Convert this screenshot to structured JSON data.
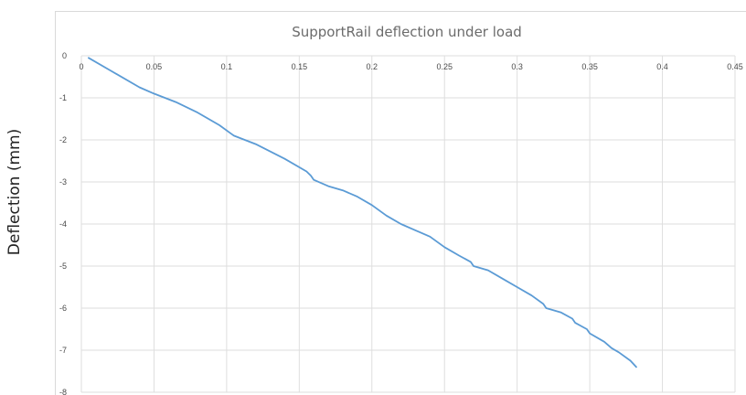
{
  "chart_data": {
    "type": "line",
    "title": "SupportRail deflection under load",
    "xlabel": "",
    "ylabel": "Deflection (mm)",
    "xlim": [
      0,
      0.45
    ],
    "ylim": [
      -8,
      0
    ],
    "x_ticks": [
      {
        "value": 0,
        "label": "0"
      },
      {
        "value": 0.05,
        "label": "0.05"
      },
      {
        "value": 0.1,
        "label": "0.1"
      },
      {
        "value": 0.15,
        "label": "0.15"
      },
      {
        "value": 0.2,
        "label": "0.2"
      },
      {
        "value": 0.25,
        "label": "0.25"
      },
      {
        "value": 0.3,
        "label": "0.3"
      },
      {
        "value": 0.35,
        "label": "0.35"
      },
      {
        "value": 0.4,
        "label": "0.4"
      },
      {
        "value": 0.45,
        "label": "0.45"
      }
    ],
    "y_ticks": [
      {
        "value": 0,
        "label": "0"
      },
      {
        "value": -1,
        "label": "-1"
      },
      {
        "value": -2,
        "label": "-2"
      },
      {
        "value": -3,
        "label": "-3"
      },
      {
        "value": -4,
        "label": "-4"
      },
      {
        "value": -5,
        "label": "-5"
      },
      {
        "value": -6,
        "label": "-6"
      },
      {
        "value": -7,
        "label": "-7"
      },
      {
        "value": -8,
        "label": "-8"
      }
    ],
    "grid": true,
    "legend": "none",
    "series": [
      {
        "color": "#5b9bd5",
        "points": [
          [
            0.005,
            -0.05
          ],
          [
            0.02,
            -0.35
          ],
          [
            0.04,
            -0.75
          ],
          [
            0.05,
            -0.9
          ],
          [
            0.065,
            -1.1
          ],
          [
            0.08,
            -1.35
          ],
          [
            0.095,
            -1.65
          ],
          [
            0.105,
            -1.9
          ],
          [
            0.12,
            -2.1
          ],
          [
            0.14,
            -2.45
          ],
          [
            0.155,
            -2.75
          ],
          [
            0.158,
            -2.85
          ],
          [
            0.16,
            -2.95
          ],
          [
            0.17,
            -3.1
          ],
          [
            0.18,
            -3.2
          ],
          [
            0.19,
            -3.35
          ],
          [
            0.2,
            -3.55
          ],
          [
            0.21,
            -3.8
          ],
          [
            0.22,
            -4.0
          ],
          [
            0.23,
            -4.15
          ],
          [
            0.24,
            -4.3
          ],
          [
            0.25,
            -4.55
          ],
          [
            0.26,
            -4.75
          ],
          [
            0.268,
            -4.9
          ],
          [
            0.27,
            -5.0
          ],
          [
            0.28,
            -5.1
          ],
          [
            0.29,
            -5.3
          ],
          [
            0.3,
            -5.5
          ],
          [
            0.31,
            -5.7
          ],
          [
            0.318,
            -5.9
          ],
          [
            0.32,
            -6.0
          ],
          [
            0.33,
            -6.1
          ],
          [
            0.338,
            -6.25
          ],
          [
            0.34,
            -6.35
          ],
          [
            0.348,
            -6.5
          ],
          [
            0.35,
            -6.6
          ],
          [
            0.36,
            -6.8
          ],
          [
            0.365,
            -6.95
          ],
          [
            0.37,
            -7.05
          ],
          [
            0.378,
            -7.25
          ],
          [
            0.382,
            -7.4
          ]
        ]
      }
    ]
  }
}
